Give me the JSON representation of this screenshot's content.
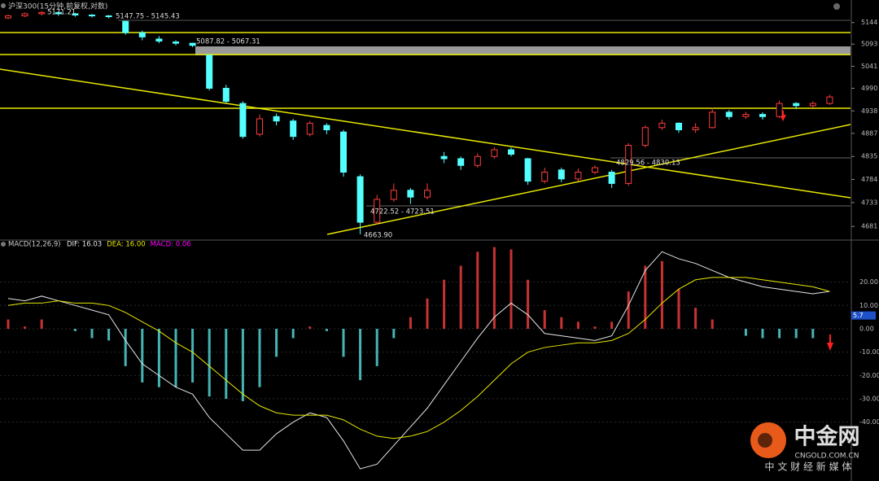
{
  "header": {
    "title": "沪深300(15分钟,前复权,对数)"
  },
  "chart_data": [
    {
      "type": "candlestick",
      "log_scale": true,
      "up_color": "#ff3c3c",
      "down_color": "#54ffff",
      "ylim": [
        4655,
        5198
      ],
      "yticks": [
        5144,
        5093,
        5041,
        4990,
        4938,
        4887,
        4835,
        4784,
        4733,
        4681
      ],
      "annotations": [
        "5171.21",
        "5147.75 - 5145.43",
        "5087.82 - 5067.31",
        "4722.52 - 4723.51",
        "4663.90",
        "4829.56 - 4830.13"
      ],
      "open": [
        5155,
        5160,
        5165,
        5168,
        5165,
        5162,
        5160,
        5147,
        5120,
        5105,
        5098,
        5095,
        5067,
        4990,
        4955,
        4885,
        4925,
        4915,
        4885,
        4905,
        4890,
        4790,
        4690,
        4740,
        4760,
        4745,
        4835,
        4830,
        4815,
        4835,
        4850,
        4830,
        4780,
        4805,
        4785,
        4800,
        4800,
        4775,
        4860,
        4900,
        4910,
        4895,
        4900,
        4935,
        4925,
        4930,
        4925,
        4955,
        4950,
        4955
      ],
      "high": [
        5163,
        5168,
        5171.21,
        5170,
        5167,
        5164,
        5162,
        5147.75,
        5125,
        5112,
        5102,
        5096,
        5067.31,
        4998,
        4960,
        4930,
        4932,
        4920,
        4915,
        4910,
        4895,
        4795,
        4750,
        4775,
        4765,
        4775,
        4845,
        4835,
        4842,
        4856,
        4855,
        4832,
        4810,
        4810,
        4808,
        4815,
        4805,
        4865,
        4905,
        4918,
        4912,
        4910,
        4945,
        4940,
        4936,
        4935,
        4962,
        4958,
        4960,
        4975
      ],
      "low": [
        5152,
        5157,
        5161,
        5160,
        5158,
        5156,
        5154,
        5115,
        5102,
        5095,
        5090,
        5086,
        4985,
        4955,
        4875,
        4880,
        4905,
        4872,
        4880,
        4885,
        4790,
        4663.9,
        4685,
        4735,
        4730,
        4740,
        4820,
        4805,
        4810,
        4830,
        4835,
        4772,
        4775,
        4778,
        4780,
        4795,
        4765,
        4770,
        4855,
        4895,
        4888,
        4888,
        4898,
        4918,
        4920,
        4918,
        4922,
        4942,
        4946,
        4952
      ],
      "close": [
        5160,
        5165,
        5168,
        5165,
        5162,
        5160,
        5158,
        5120,
        5110,
        5100,
        5095,
        5090,
        4990,
        4960,
        4880,
        4920,
        4915,
        4880,
        4910,
        4895,
        4800,
        4690,
        4740,
        4760,
        4745,
        4760,
        4830,
        4815,
        4835,
        4850,
        4840,
        4780,
        4800,
        4785,
        4800,
        4810,
        4775,
        4860,
        4900,
        4910,
        4895,
        4900,
        4935,
        4925,
        4930,
        4925,
        4955,
        4950,
        4955,
        4970
      ]
    },
    {
      "type": "macd",
      "title": "MACD(12,26,9)",
      "ylim": [
        -65.2,
        37.3
      ],
      "yticks": [
        {
          "value": 20,
          "label": "20.00"
        },
        {
          "value": 10,
          "label": "10.00"
        },
        {
          "value": 0,
          "label": "0.00"
        },
        {
          "value": -10,
          "label": "-10.00"
        },
        {
          "value": -20,
          "label": "-20.00"
        },
        {
          "value": -30,
          "label": "-30.00"
        },
        {
          "value": -40,
          "label": "-40.00"
        }
      ],
      "current_marker": 5.7,
      "series": [
        {
          "name": "DIF: 16.03",
          "color": "#e6e6e6",
          "values": [
            13,
            12,
            14,
            12,
            10,
            8,
            6,
            -5,
            -15,
            -20,
            -25,
            -28,
            -38,
            -45,
            -52,
            -52,
            -45,
            -40,
            -36,
            -38,
            -48,
            -60,
            -58,
            -50,
            -42,
            -34,
            -24,
            -14,
            -4,
            5,
            11,
            6,
            -2,
            -3,
            -4,
            -5,
            -3,
            10,
            25,
            33,
            30,
            28,
            25,
            22,
            20,
            18,
            17,
            16,
            15,
            16.03
          ]
        },
        {
          "name": "DEA: 16.00",
          "color": "#e8e800",
          "values": [
            10,
            11,
            11,
            12,
            11,
            11,
            10,
            7,
            3,
            -1,
            -6,
            -10,
            -16,
            -22,
            -28,
            -33,
            -36,
            -37,
            -37,
            -37,
            -39,
            -43,
            -46,
            -47,
            -46,
            -44,
            -40,
            -35,
            -29,
            -22,
            -15,
            -10,
            -8,
            -7,
            -6,
            -6,
            -5,
            -2,
            4,
            11,
            17,
            21,
            22,
            22,
            22,
            21,
            20,
            19,
            18,
            16.0
          ]
        },
        {
          "name": "MACD: 0.06",
          "color": "#ff00ff",
          "up_color": "#c83232",
          "down_color": "#46b4b4",
          "values": [
            4,
            1,
            4,
            0,
            -1,
            -4,
            -5,
            -16,
            -23,
            -25,
            -25,
            -23,
            -29,
            -30,
            -31,
            -25,
            -12,
            -4,
            1,
            -1,
            -12,
            -22,
            -16,
            -4,
            5,
            13,
            21,
            27,
            33,
            35,
            34,
            21,
            8,
            5,
            3,
            1,
            3,
            16,
            27,
            29,
            17,
            9,
            4,
            0,
            -3,
            -4,
            -4,
            -4,
            -4,
            0.06
          ]
        }
      ]
    }
  ],
  "watermark": {
    "logo": "中金网",
    "site": "CNGOLD.COM.CN",
    "tagline": "中 文 财 经 新 媒 体"
  }
}
